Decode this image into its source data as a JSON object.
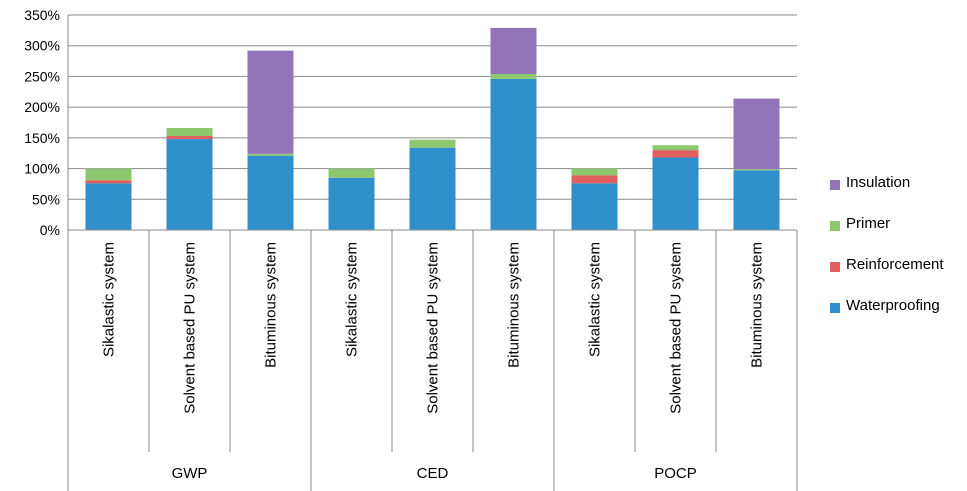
{
  "chart_data": {
    "type": "bar",
    "stacked": true,
    "y_tick_labels": [
      "0%",
      "50%",
      "100%",
      "150%",
      "200%",
      "250%",
      "300%",
      "350%"
    ],
    "ylim": [
      0,
      350
    ],
    "grid": true,
    "legend_position": "right",
    "groups": [
      {
        "label": "GWP",
        "categories": [
          "Sikalastic system",
          "Solvent based PU system",
          "Bituminous system"
        ]
      },
      {
        "label": "CED",
        "categories": [
          "Sikalastic system",
          "Solvent based PU system",
          "Bituminous system"
        ]
      },
      {
        "label": "POCP",
        "categories": [
          "Sikalastic system",
          "Solvent based PU system",
          "Bituminous system"
        ]
      }
    ],
    "series": [
      {
        "name": "Waterproofing",
        "color": "#2E8FCB",
        "values": [
          76,
          148,
          121,
          85,
          134,
          246,
          76,
          118,
          97
        ]
      },
      {
        "name": "Reinforcement",
        "color": "#E15E5E",
        "values": [
          5,
          5,
          0,
          0,
          0,
          0,
          13,
          12,
          0
        ]
      },
      {
        "name": "Primer",
        "color": "#8DC76E",
        "values": [
          19,
          13,
          3,
          15,
          13,
          8,
          11,
          8,
          2
        ]
      },
      {
        "name": "Insulation",
        "color": "#9175B8",
        "values": [
          0,
          0,
          168,
          0,
          0,
          75,
          0,
          0,
          115
        ]
      }
    ],
    "legend_order": [
      "Insulation",
      "Primer",
      "Reinforcement",
      "Waterproofing"
    ]
  }
}
